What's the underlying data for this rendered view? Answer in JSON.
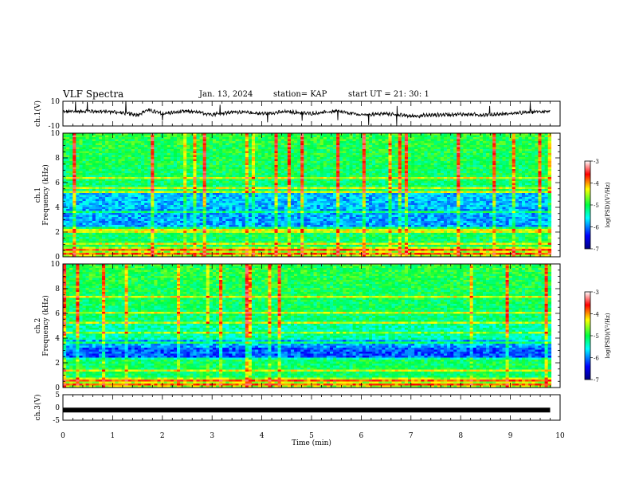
{
  "header": {
    "title": "VLF Spectra",
    "date": "Jan. 13, 2024",
    "station": "station= KAP",
    "start": "start  UT  =   21: 30: 1"
  },
  "chart_data": [
    {
      "type": "line",
      "panel": "ch1-waveform",
      "ylabel": "ch.1(V)",
      "ylim": [
        -10,
        10
      ],
      "yticks": [
        "10",
        "-10"
      ],
      "x": [
        0,
        0.5,
        1,
        1.5,
        1.7,
        2,
        2.5,
        3,
        3.5,
        4,
        4.5,
        5,
        5.5,
        6,
        6.5,
        7,
        7.5,
        8,
        8.5,
        9,
        9.5,
        9.8
      ],
      "y": [
        1.5,
        2,
        1.5,
        -1,
        3,
        0,
        2,
        -0.5,
        1.5,
        0,
        1.5,
        0,
        2,
        -1,
        0,
        -2,
        -1,
        -0.5,
        -1,
        0,
        1.5,
        2
      ]
    },
    {
      "type": "heatmap",
      "panel": "ch1-spectrogram",
      "ylabel": "ch.1 Frequency (kHz)",
      "ylim": [
        0,
        10
      ],
      "yticks": [
        "0",
        "2",
        "4",
        "6",
        "8",
        "10"
      ],
      "colorbar": {
        "label": "log(PSD)(V²/Hz)",
        "range": [
          -7,
          -3
        ],
        "ticks": [
          "-3",
          "-4",
          "-5",
          "-6",
          "-7"
        ]
      }
    },
    {
      "type": "heatmap",
      "panel": "ch2-spectrogram",
      "ylabel": "ch.2 Frequency (kHz)",
      "ylim": [
        0,
        10
      ],
      "yticks": [
        "0",
        "2",
        "4",
        "6",
        "8",
        "10"
      ],
      "colorbar": {
        "label": "log(PSD)(V²/Hz)",
        "range": [
          -7,
          -3
        ],
        "ticks": [
          "-3",
          "-4",
          "-5",
          "-6",
          "-7"
        ]
      }
    },
    {
      "type": "line",
      "panel": "ch3-waveform",
      "ylabel": "ch.3(V)",
      "ylim": [
        -5,
        5
      ],
      "yticks": [
        "5",
        "0",
        "-5"
      ],
      "x": [
        0,
        9.8
      ],
      "y": [
        -1,
        -1
      ]
    }
  ],
  "xaxis": {
    "xlabel": "Time  (min)",
    "xlim": [
      0,
      10
    ],
    "ticks": [
      "0",
      "1",
      "2",
      "3",
      "4",
      "5",
      "6",
      "7",
      "8",
      "9",
      "10"
    ]
  }
}
